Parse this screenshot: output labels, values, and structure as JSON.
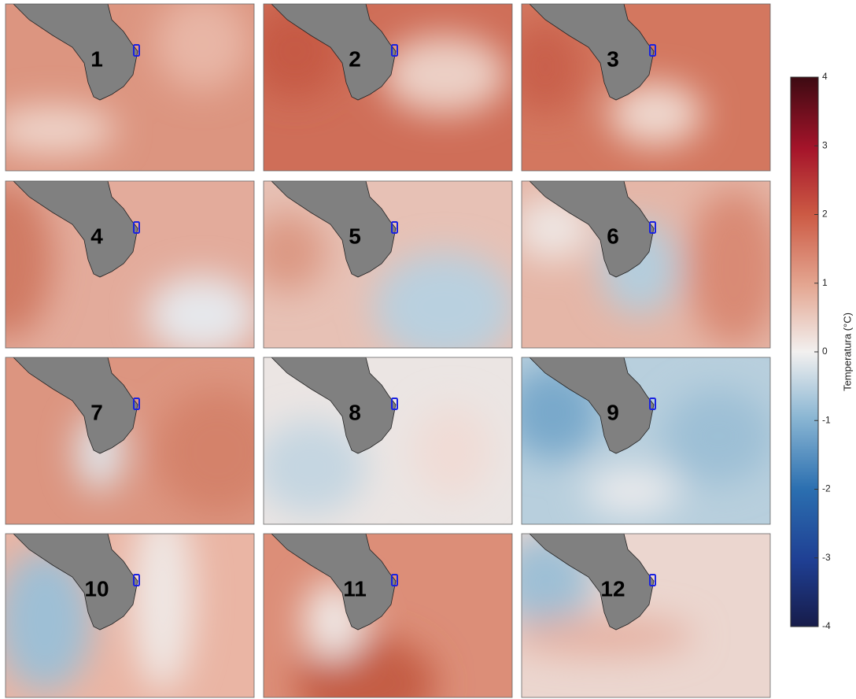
{
  "chart_data": {
    "type": "map-grid",
    "panels": [
      "1",
      "2",
      "3",
      "4",
      "5",
      "6",
      "7",
      "8",
      "9",
      "10",
      "11",
      "12"
    ],
    "colorbar": {
      "label": "Temperatura (°C)",
      "lim": [
        -4,
        4
      ],
      "ticks": [
        -4,
        -3,
        -2,
        -1,
        0,
        1,
        2,
        3,
        4
      ]
    }
  }
}
